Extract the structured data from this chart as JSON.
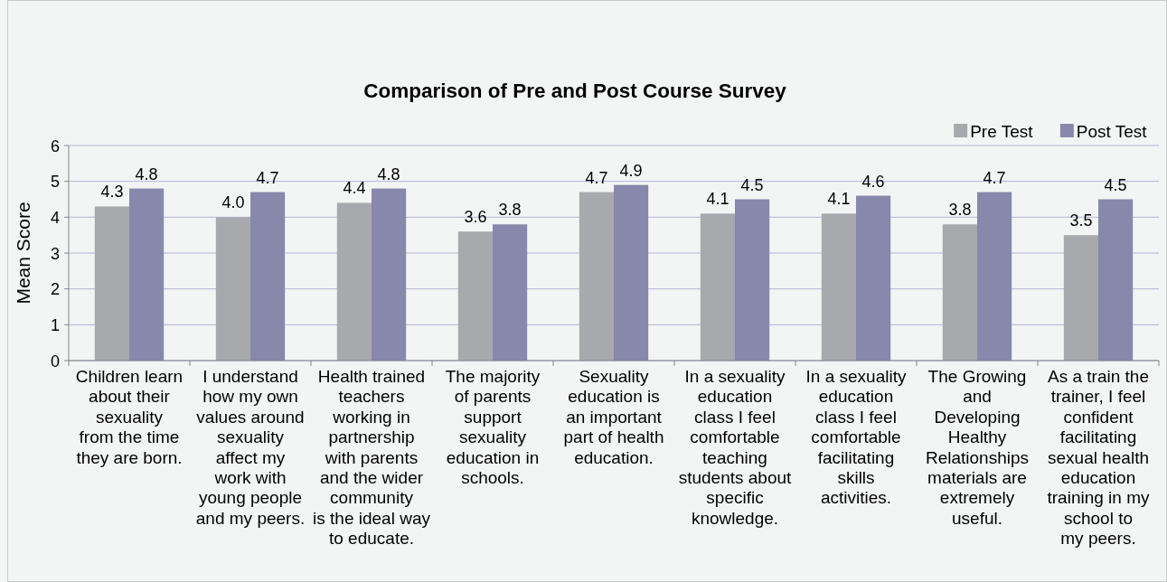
{
  "chart_data": {
    "type": "bar",
    "title": "Comparison of Pre and Post Course Survey",
    "ylabel": "Mean Score",
    "categories": [
      "Children learn\nabout their\nsexuality\nfrom the time\nthey are born.",
      "I understand\nhow my own\nvalues around\nsexuality\naffect my\nwork with\nyoung people\nand my peers.",
      "Health trained\nteachers\nworking in\npartnership\nwith parents\nand the wider\ncommunity\nis the ideal way\nto educate.",
      "The majority\nof parents\nsupport\nsexuality\neducation in\nschools.",
      "Sexuality\neducation is\nan important\npart of health\neducation.",
      "In a sexuality\neducation\nclass I feel\ncomfortable\nteaching\nstudents about\nspecific\nknowledge.",
      "In a sexuality\neducation\nclass I feel\ncomfortable\nfacilitating\nskills\nactivities.",
      "The Growing\nand\nDeveloping\nHealthy\nRelationships\nmaterials are\nextremely\nuseful.",
      "As a train the\ntrainer, I feel\nconfident\nfacilitating\nsexual health\neducation\ntraining in my\nschool to\nmy peers."
    ],
    "series": [
      {
        "name": "Pre Test",
        "color": "#a8a9ad",
        "values": [
          4.3,
          4.0,
          4.4,
          3.6,
          4.7,
          4.1,
          4.1,
          3.8,
          3.5
        ],
        "value_labels": [
          "4.3",
          "4.0",
          "4.4",
          "3.6",
          "4.7",
          "4.1",
          "4.1",
          "3.8",
          "3.5"
        ]
      },
      {
        "name": "Post Test",
        "color": "#8788ab",
        "values": [
          4.8,
          4.7,
          4.8,
          3.8,
          4.9,
          4.5,
          4.6,
          4.7,
          4.5
        ],
        "value_labels": [
          "4.8",
          "4.7",
          "4.8",
          "3.8",
          "4.9",
          "4.5",
          "4.6",
          "4.7",
          "4.5"
        ]
      }
    ],
    "ylim": [
      0,
      6
    ],
    "yticks": [
      0,
      1,
      2,
      3,
      4,
      5,
      6
    ],
    "grid": "y",
    "legend": "top right"
  }
}
